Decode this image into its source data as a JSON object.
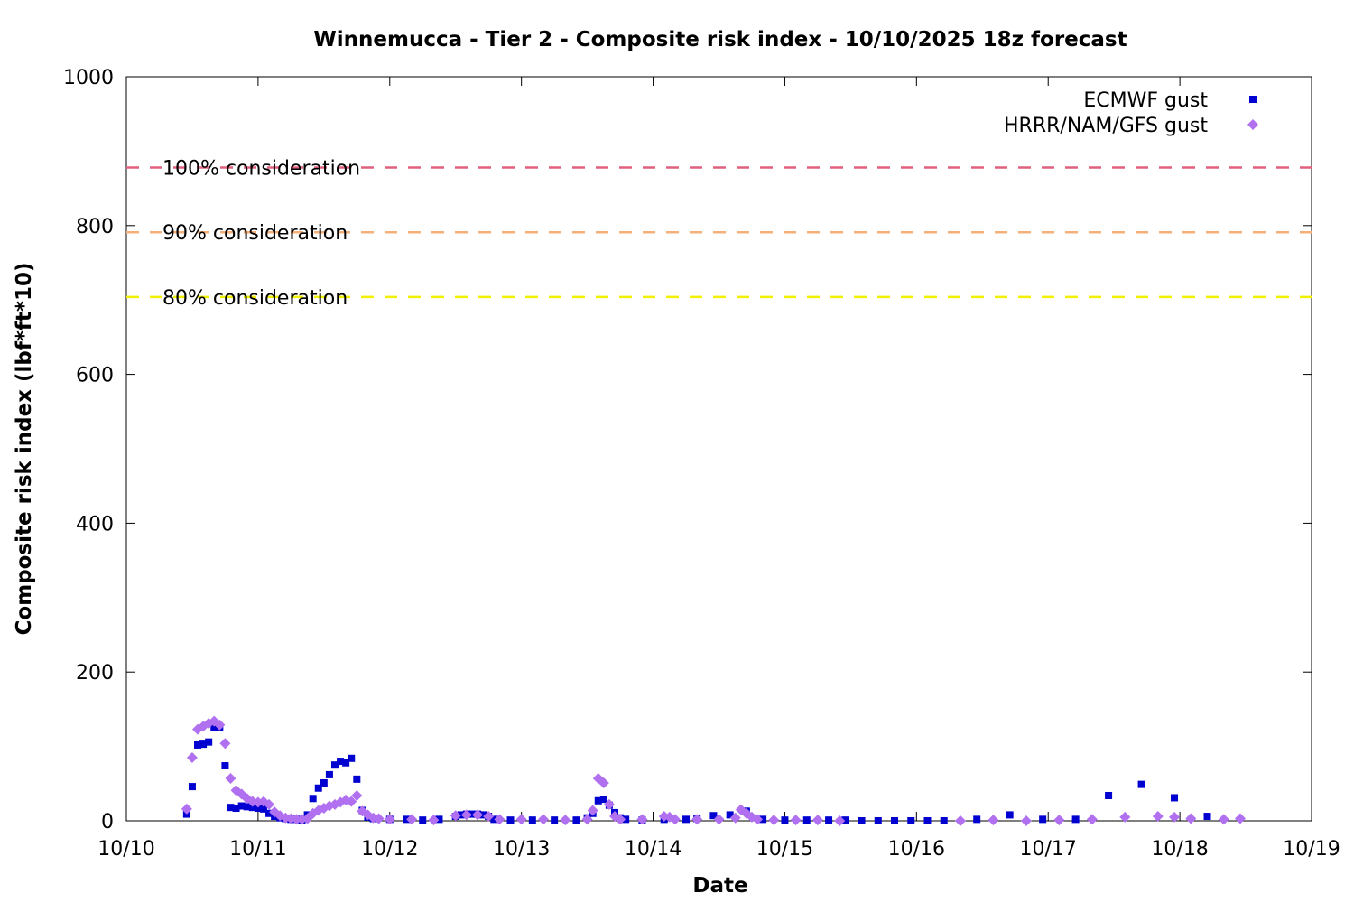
{
  "chart_data": {
    "type": "scatter",
    "title": "Winnemucca - Tier 2 - Composite risk index - 10/10/2025 18z forecast",
    "x_label": "Date",
    "y_label": "Composite risk index (lbf*ft*10)",
    "xlim": [
      0,
      216
    ],
    "ylim": [
      0,
      1000
    ],
    "xticks": [
      {
        "value": 0,
        "label": "10/10"
      },
      {
        "value": 24,
        "label": "10/11"
      },
      {
        "value": 48,
        "label": "10/12"
      },
      {
        "value": 72,
        "label": "10/13"
      },
      {
        "value": 96,
        "label": "10/14"
      },
      {
        "value": 120,
        "label": "10/15"
      },
      {
        "value": 144,
        "label": "10/16"
      },
      {
        "value": 168,
        "label": "10/17"
      },
      {
        "value": 192,
        "label": "10/18"
      },
      {
        "value": 216,
        "label": "10/19"
      }
    ],
    "yticks": [
      0,
      200,
      400,
      600,
      800,
      1000
    ],
    "legend": "top-right",
    "thresholds": [
      {
        "label": "100% consideration",
        "value": 878,
        "color": "#e0607e"
      },
      {
        "label": "90% consideration",
        "value": 791,
        "color": "#f5b07a"
      },
      {
        "label": "80% consideration",
        "value": 704,
        "color": "#f0f000"
      }
    ],
    "series": [
      {
        "name": "ECMWF gust",
        "color": "#0000d0",
        "marker": "square",
        "x": [
          11,
          12,
          13,
          14,
          15,
          16,
          17,
          18,
          19,
          20,
          21,
          22,
          23,
          24,
          25,
          26,
          27,
          28,
          29,
          30,
          31,
          32,
          33,
          34,
          35,
          36,
          37,
          38,
          39,
          40,
          41,
          42,
          43,
          44,
          45,
          48,
          51,
          54,
          57,
          60,
          61,
          62,
          63,
          64,
          65,
          66,
          67,
          70,
          74,
          78,
          82,
          84,
          85,
          86,
          87,
          88,
          89,
          90,
          91,
          94,
          98,
          102,
          104,
          107,
          110,
          113,
          116,
          120,
          124,
          128,
          131,
          134,
          137,
          140,
          143,
          146,
          149,
          155,
          161,
          167,
          173,
          179,
          185,
          191,
          197
        ],
        "values": [
          9,
          46,
          102,
          103,
          106,
          126,
          125,
          74,
          18,
          17,
          20,
          19,
          18,
          17,
          16,
          10,
          6,
          4,
          3,
          2,
          2,
          1,
          8,
          30,
          44,
          51,
          62,
          75,
          80,
          78,
          84,
          56,
          14,
          5,
          3,
          2,
          2,
          1,
          2,
          6,
          8,
          9,
          9,
          9,
          8,
          6,
          2,
          1,
          1,
          1,
          1,
          4,
          10,
          27,
          29,
          21,
          11,
          4,
          2,
          1,
          2,
          2,
          3,
          7,
          8,
          13,
          2,
          1,
          1,
          1,
          1,
          0,
          0,
          0,
          0,
          0,
          0,
          2,
          8,
          2,
          2,
          34,
          49,
          31,
          6
        ]
      },
      {
        "name": "HRRR/NAM/GFS gust",
        "color": "#b070f0",
        "marker": "diamond",
        "x": [
          11,
          12,
          13,
          14,
          15,
          16,
          17,
          18,
          19,
          20,
          21,
          22,
          23,
          24,
          25,
          26,
          27,
          28,
          29,
          30,
          31,
          32,
          33,
          34,
          35,
          36,
          37,
          38,
          39,
          40,
          41,
          42,
          43,
          44,
          45,
          46,
          48,
          52,
          56,
          60,
          62,
          64,
          66,
          68,
          72,
          76,
          80,
          84,
          85,
          86,
          87,
          88,
          89,
          90,
          94,
          98,
          99,
          100,
          104,
          108,
          111,
          112,
          113,
          114,
          115,
          118,
          122,
          126,
          130,
          152,
          158,
          164,
          170,
          176,
          182,
          188,
          191,
          194,
          200,
          203
        ],
        "values": [
          16,
          85,
          123,
          127,
          131,
          134,
          129,
          104,
          57,
          41,
          36,
          30,
          26,
          25,
          26,
          22,
          12,
          7,
          4,
          3,
          2,
          2,
          3,
          10,
          14,
          17,
          20,
          22,
          25,
          28,
          26,
          34,
          13,
          8,
          4,
          3,
          2,
          2,
          1,
          7,
          8,
          8,
          6,
          2,
          2,
          2,
          1,
          2,
          14,
          57,
          51,
          22,
          6,
          2,
          2,
          6,
          5,
          2,
          2,
          2,
          4,
          15,
          10,
          5,
          2,
          1,
          1,
          1,
          0,
          0,
          1,
          0,
          1,
          2,
          5,
          6,
          5,
          3,
          2,
          3
        ]
      }
    ]
  }
}
